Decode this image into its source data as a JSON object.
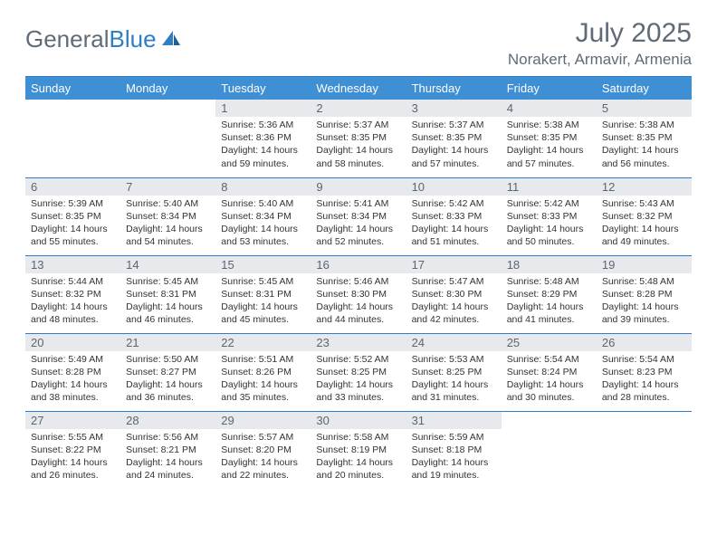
{
  "logo": {
    "text1": "General",
    "text2": "Blue"
  },
  "title": "July 2025",
  "location": "Norakert, Armavir, Armenia",
  "columns": [
    "Sunday",
    "Monday",
    "Tuesday",
    "Wednesday",
    "Thursday",
    "Friday",
    "Saturday"
  ],
  "colors": {
    "header_bg": "#3f8fd4",
    "accent_line": "#2f7dc4",
    "daynum_bg": "#e7e9ec",
    "text_muted": "#5f6b77"
  },
  "weeks": [
    [
      null,
      null,
      {
        "n": "1",
        "sr": "5:36 AM",
        "ss": "8:36 PM",
        "dl": "14 hours and 59 minutes."
      },
      {
        "n": "2",
        "sr": "5:37 AM",
        "ss": "8:35 PM",
        "dl": "14 hours and 58 minutes."
      },
      {
        "n": "3",
        "sr": "5:37 AM",
        "ss": "8:35 PM",
        "dl": "14 hours and 57 minutes."
      },
      {
        "n": "4",
        "sr": "5:38 AM",
        "ss": "8:35 PM",
        "dl": "14 hours and 57 minutes."
      },
      {
        "n": "5",
        "sr": "5:38 AM",
        "ss": "8:35 PM",
        "dl": "14 hours and 56 minutes."
      }
    ],
    [
      {
        "n": "6",
        "sr": "5:39 AM",
        "ss": "8:35 PM",
        "dl": "14 hours and 55 minutes."
      },
      {
        "n": "7",
        "sr": "5:40 AM",
        "ss": "8:34 PM",
        "dl": "14 hours and 54 minutes."
      },
      {
        "n": "8",
        "sr": "5:40 AM",
        "ss": "8:34 PM",
        "dl": "14 hours and 53 minutes."
      },
      {
        "n": "9",
        "sr": "5:41 AM",
        "ss": "8:34 PM",
        "dl": "14 hours and 52 minutes."
      },
      {
        "n": "10",
        "sr": "5:42 AM",
        "ss": "8:33 PM",
        "dl": "14 hours and 51 minutes."
      },
      {
        "n": "11",
        "sr": "5:42 AM",
        "ss": "8:33 PM",
        "dl": "14 hours and 50 minutes."
      },
      {
        "n": "12",
        "sr": "5:43 AM",
        "ss": "8:32 PM",
        "dl": "14 hours and 49 minutes."
      }
    ],
    [
      {
        "n": "13",
        "sr": "5:44 AM",
        "ss": "8:32 PM",
        "dl": "14 hours and 48 minutes."
      },
      {
        "n": "14",
        "sr": "5:45 AM",
        "ss": "8:31 PM",
        "dl": "14 hours and 46 minutes."
      },
      {
        "n": "15",
        "sr": "5:45 AM",
        "ss": "8:31 PM",
        "dl": "14 hours and 45 minutes."
      },
      {
        "n": "16",
        "sr": "5:46 AM",
        "ss": "8:30 PM",
        "dl": "14 hours and 44 minutes."
      },
      {
        "n": "17",
        "sr": "5:47 AM",
        "ss": "8:30 PM",
        "dl": "14 hours and 42 minutes."
      },
      {
        "n": "18",
        "sr": "5:48 AM",
        "ss": "8:29 PM",
        "dl": "14 hours and 41 minutes."
      },
      {
        "n": "19",
        "sr": "5:48 AM",
        "ss": "8:28 PM",
        "dl": "14 hours and 39 minutes."
      }
    ],
    [
      {
        "n": "20",
        "sr": "5:49 AM",
        "ss": "8:28 PM",
        "dl": "14 hours and 38 minutes."
      },
      {
        "n": "21",
        "sr": "5:50 AM",
        "ss": "8:27 PM",
        "dl": "14 hours and 36 minutes."
      },
      {
        "n": "22",
        "sr": "5:51 AM",
        "ss": "8:26 PM",
        "dl": "14 hours and 35 minutes."
      },
      {
        "n": "23",
        "sr": "5:52 AM",
        "ss": "8:25 PM",
        "dl": "14 hours and 33 minutes."
      },
      {
        "n": "24",
        "sr": "5:53 AM",
        "ss": "8:25 PM",
        "dl": "14 hours and 31 minutes."
      },
      {
        "n": "25",
        "sr": "5:54 AM",
        "ss": "8:24 PM",
        "dl": "14 hours and 30 minutes."
      },
      {
        "n": "26",
        "sr": "5:54 AM",
        "ss": "8:23 PM",
        "dl": "14 hours and 28 minutes."
      }
    ],
    [
      {
        "n": "27",
        "sr": "5:55 AM",
        "ss": "8:22 PM",
        "dl": "14 hours and 26 minutes."
      },
      {
        "n": "28",
        "sr": "5:56 AM",
        "ss": "8:21 PM",
        "dl": "14 hours and 24 minutes."
      },
      {
        "n": "29",
        "sr": "5:57 AM",
        "ss": "8:20 PM",
        "dl": "14 hours and 22 minutes."
      },
      {
        "n": "30",
        "sr": "5:58 AM",
        "ss": "8:19 PM",
        "dl": "14 hours and 20 minutes."
      },
      {
        "n": "31",
        "sr": "5:59 AM",
        "ss": "8:18 PM",
        "dl": "14 hours and 19 minutes."
      },
      null,
      null
    ]
  ],
  "labels": {
    "sunrise": "Sunrise:",
    "sunset": "Sunset:",
    "daylight": "Daylight:"
  }
}
